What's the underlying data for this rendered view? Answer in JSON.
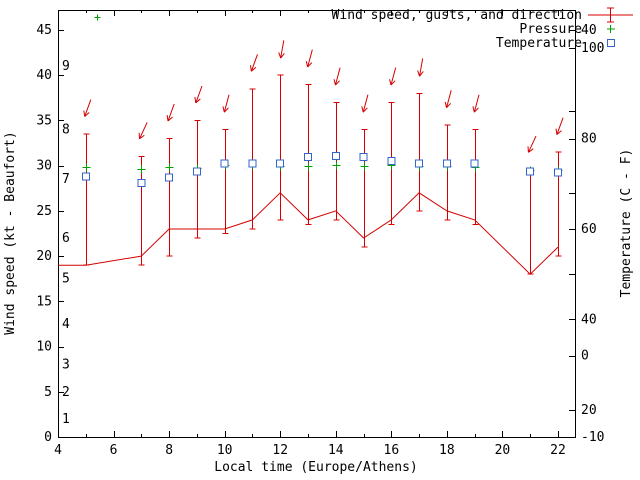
{
  "chart_data": {
    "type": "line",
    "title": "",
    "xlabel": "Local time (Europe/Athens)",
    "ylabel_left": "Wind speed (kt - Beaufort)",
    "ylabel_right": "Temperature (C - F)",
    "background": "#ffffff",
    "axis_color": "#000000",
    "x_axis": {
      "min": 4,
      "max": 22.6,
      "major_ticks": [
        4,
        6,
        8,
        10,
        12,
        14,
        16,
        18,
        20,
        22
      ],
      "minor_ticks": [
        5,
        7,
        9,
        11,
        13,
        15,
        17,
        19,
        21
      ]
    },
    "y_left_axis": {
      "min": 0,
      "max": 47.2,
      "ticks": [
        0,
        5,
        10,
        15,
        20,
        25,
        30,
        35,
        40,
        45
      ]
    },
    "beaufort_labels": [
      {
        "label": "1",
        "kt": 2
      },
      {
        "label": "2",
        "kt": 5
      },
      {
        "label": "3",
        "kt": 8
      },
      {
        "label": "4",
        "kt": 12.5
      },
      {
        "label": "5",
        "kt": 17.5
      },
      {
        "label": "6",
        "kt": 22
      },
      {
        "label": "7",
        "kt": 28.5
      },
      {
        "label": "8",
        "kt": 34
      },
      {
        "label": "9",
        "kt": 41
      }
    ],
    "y_right_axis": {
      "celsius_labeled": [
        {
          "label": "40",
          "c": 40
        },
        {
          "label": "0",
          "c": 0
        },
        {
          "label": "-10",
          "c": -10
        }
      ],
      "celsius_unlabeled": [
        10,
        20,
        30
      ],
      "fahrenheit_labeled": [
        {
          "label": "100",
          "f": 100
        },
        {
          "label": "80",
          "f": 80
        },
        {
          "label": "60",
          "f": 60
        },
        {
          "label": "40",
          "f": 40
        },
        {
          "label": "20",
          "f": 20
        }
      ]
    },
    "legend": [
      {
        "label": "Wind speed, gusts, and direction",
        "color": "#d40000",
        "marker": "errorbar-line"
      },
      {
        "label": "Pressure",
        "color": "#00a000",
        "marker": "plus"
      },
      {
        "label": "Temperature",
        "color": "#3366cc",
        "marker": "open-square"
      }
    ],
    "wind": {
      "color": "#d40000",
      "units": "kt",
      "points": [
        {
          "hour": 4,
          "speed": 19
        },
        {
          "hour": 5,
          "speed": 19,
          "gust_low": 19,
          "gust_high": 33.5,
          "dir_deg": 200
        },
        {
          "hour": 7,
          "speed": 20,
          "gust_low": 19,
          "gust_high": 31,
          "dir_deg": 205
        },
        {
          "hour": 8,
          "speed": 23,
          "gust_low": 20,
          "gust_high": 33,
          "dir_deg": 200
        },
        {
          "hour": 9,
          "speed": 23,
          "gust_low": 22,
          "gust_high": 35,
          "dir_deg": 200
        },
        {
          "hour": 10,
          "speed": 23,
          "gust_low": 22.5,
          "gust_high": 34,
          "dir_deg": 195
        },
        {
          "hour": 11,
          "speed": 24,
          "gust_low": 23,
          "gust_high": 38.5,
          "dir_deg": 200
        },
        {
          "hour": 12,
          "speed": 27,
          "gust_low": 24,
          "gust_high": 40,
          "dir_deg": 190
        },
        {
          "hour": 13,
          "speed": 24,
          "gust_low": 23.5,
          "gust_high": 39,
          "dir_deg": 195
        },
        {
          "hour": 14,
          "speed": 25,
          "gust_low": 24,
          "gust_high": 37,
          "dir_deg": 195
        },
        {
          "hour": 15,
          "speed": 22,
          "gust_low": 21,
          "gust_high": 34,
          "dir_deg": 195
        },
        {
          "hour": 16,
          "speed": 24,
          "gust_low": 23.5,
          "gust_high": 37,
          "dir_deg": 195
        },
        {
          "hour": 17,
          "speed": 27,
          "gust_low": 25,
          "gust_high": 38,
          "dir_deg": 190
        },
        {
          "hour": 18,
          "speed": 25,
          "gust_low": 24,
          "gust_high": 34.5,
          "dir_deg": 195
        },
        {
          "hour": 19,
          "speed": 24,
          "gust_low": 23.5,
          "gust_high": 34,
          "dir_deg": 195
        },
        {
          "hour": 21,
          "speed": 18,
          "gust_low": 18,
          "gust_high": 29.5,
          "dir_deg": 205
        },
        {
          "hour": 22,
          "speed": 21,
          "gust_low": 20,
          "gust_high": 31.5,
          "dir_deg": 200
        }
      ]
    },
    "pressure": {
      "color": "#00a000",
      "marker": "plus",
      "points": [
        {
          "hour": 5,
          "y_left_units": 29.9
        },
        {
          "hour": 7,
          "y_left_units": 29.6
        },
        {
          "hour": 8,
          "y_left_units": 29.9
        },
        {
          "hour": 9,
          "y_left_units": 29.7
        },
        {
          "hour": 10,
          "y_left_units": 30.1
        },
        {
          "hour": 11,
          "y_left_units": 30.1
        },
        {
          "hour": 12,
          "y_left_units": 30.0
        },
        {
          "hour": 13,
          "y_left_units": 30.0
        },
        {
          "hour": 14,
          "y_left_units": 30.1
        },
        {
          "hour": 15,
          "y_left_units": 30.0
        },
        {
          "hour": 16,
          "y_left_units": 30.1
        },
        {
          "hour": 17,
          "y_left_units": 30.0
        },
        {
          "hour": 18,
          "y_left_units": 30.0
        },
        {
          "hour": 19,
          "y_left_units": 29.9
        },
        {
          "hour": 21,
          "y_left_units": 29.5
        },
        {
          "hour": 22,
          "y_left_units": 29.5
        }
      ]
    },
    "temperature": {
      "color": "#3366cc",
      "marker": "open-square",
      "units": "C",
      "points": [
        {
          "hour": 5,
          "c": 22.0
        },
        {
          "hour": 7,
          "c": 21.2
        },
        {
          "hour": 8,
          "c": 21.9
        },
        {
          "hour": 9,
          "c": 22.6
        },
        {
          "hour": 10,
          "c": 23.6
        },
        {
          "hour": 11,
          "c": 23.6
        },
        {
          "hour": 12,
          "c": 23.6
        },
        {
          "hour": 13,
          "c": 24.4
        },
        {
          "hour": 14,
          "c": 24.5
        },
        {
          "hour": 15,
          "c": 24.4
        },
        {
          "hour": 16,
          "c": 23.9
        },
        {
          "hour": 17,
          "c": 23.6
        },
        {
          "hour": 18,
          "c": 23.6
        },
        {
          "hour": 19,
          "c": 23.6
        },
        {
          "hour": 21,
          "c": 22.6
        },
        {
          "hour": 22,
          "c": 22.5
        }
      ]
    },
    "extra_marks": [
      {
        "shape": "plus",
        "color": "#00a000",
        "hour": 5.4,
        "y_left_units": 46.4
      }
    ]
  }
}
